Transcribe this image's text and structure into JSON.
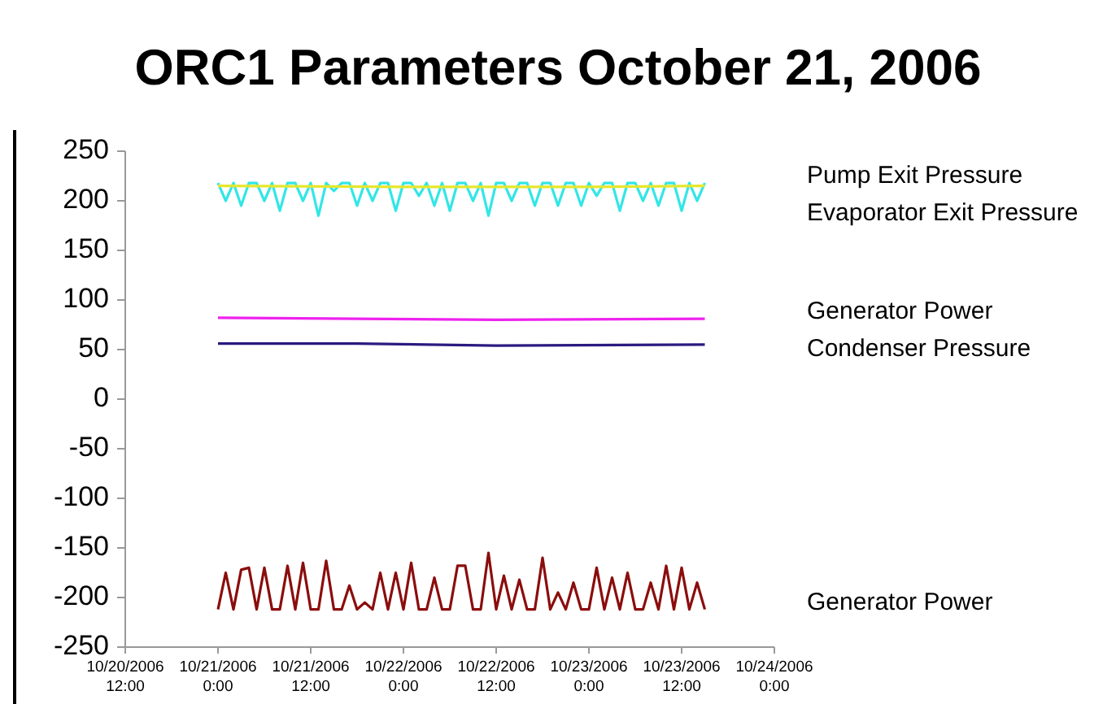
{
  "chart_data": {
    "type": "line",
    "title": "ORC1 Parameters October 21, 2006",
    "x": [
      "2006-10-21T00:00",
      "2006-10-21T01:00",
      "2006-10-21T02:00",
      "2006-10-21T03:00",
      "2006-10-21T04:00",
      "2006-10-21T05:00",
      "2006-10-21T06:00",
      "2006-10-21T07:00",
      "2006-10-21T08:00",
      "2006-10-21T09:00",
      "2006-10-21T10:00",
      "2006-10-21T11:00",
      "2006-10-21T12:00",
      "2006-10-21T13:00",
      "2006-10-21T14:00",
      "2006-10-21T15:00",
      "2006-10-21T16:00",
      "2006-10-21T17:00",
      "2006-10-21T18:00",
      "2006-10-21T19:00",
      "2006-10-21T20:00",
      "2006-10-21T21:00",
      "2006-10-21T22:00",
      "2006-10-21T23:00",
      "2006-10-22T00:00",
      "2006-10-22T01:00",
      "2006-10-22T02:00",
      "2006-10-22T03:00",
      "2006-10-22T04:00",
      "2006-10-22T05:00",
      "2006-10-22T06:00",
      "2006-10-22T07:00",
      "2006-10-22T08:00",
      "2006-10-22T09:00",
      "2006-10-22T10:00",
      "2006-10-22T11:00",
      "2006-10-22T12:00",
      "2006-10-22T13:00",
      "2006-10-22T14:00",
      "2006-10-22T15:00",
      "2006-10-22T16:00",
      "2006-10-22T17:00",
      "2006-10-22T18:00",
      "2006-10-22T19:00",
      "2006-10-22T20:00",
      "2006-10-22T21:00",
      "2006-10-22T22:00",
      "2006-10-22T23:00",
      "2006-10-23T00:00",
      "2006-10-23T01:00",
      "2006-10-23T02:00",
      "2006-10-23T03:00",
      "2006-10-23T04:00",
      "2006-10-23T05:00",
      "2006-10-23T06:00",
      "2006-10-23T07:00",
      "2006-10-23T08:00",
      "2006-10-23T09:00",
      "2006-10-23T10:00",
      "2006-10-23T11:00",
      "2006-10-23T12:00",
      "2006-10-23T13:00",
      "2006-10-23T14:00",
      "2006-10-23T15:00"
    ],
    "series": [
      {
        "name": "Pump Exit Pressure",
        "color": "#33e6e6",
        "values": [
          218,
          200,
          218,
          195,
          218,
          218,
          200,
          218,
          190,
          218,
          218,
          200,
          218,
          185,
          218,
          210,
          218,
          218,
          195,
          218,
          200,
          218,
          218,
          190,
          218,
          218,
          205,
          218,
          195,
          218,
          190,
          218,
          218,
          200,
          218,
          185,
          218,
          218,
          200,
          218,
          218,
          195,
          218,
          218,
          195,
          218,
          218,
          195,
          218,
          205,
          218,
          218,
          190,
          218,
          218,
          200,
          218,
          195,
          218,
          218,
          190,
          218,
          200,
          218
        ]
      },
      {
        "name": "Evaporator Exit Pressure",
        "color": "#e6e62e",
        "x": [
          "2006-10-21T00:00",
          "2006-10-22T00:00",
          "2006-10-23T00:00",
          "2006-10-23T15:00"
        ],
        "values": [
          215,
          214,
          214,
          215
        ]
      },
      {
        "name": "Generator Power",
        "color": "#ee22ee",
        "x": [
          "2006-10-21T00:00",
          "2006-10-21T18:00",
          "2006-10-22T12:00",
          "2006-10-23T15:00"
        ],
        "values": [
          82,
          81,
          80,
          81
        ]
      },
      {
        "name": "Condenser Pressure",
        "color": "#2a1a80",
        "x": [
          "2006-10-21T00:00",
          "2006-10-21T18:00",
          "2006-10-22T12:00",
          "2006-10-23T15:00"
        ],
        "values": [
          56,
          56,
          54,
          55
        ]
      },
      {
        "name": "Generator Power",
        "color": "#8b0d0d",
        "values": [
          -212,
          -175,
          -212,
          -172,
          -170,
          -212,
          -170,
          -212,
          -212,
          -168,
          -212,
          -165,
          -212,
          -212,
          -163,
          -212,
          -212,
          -188,
          -212,
          -205,
          -212,
          -175,
          -212,
          -175,
          -212,
          -165,
          -212,
          -212,
          -180,
          -212,
          -212,
          -168,
          -168,
          -212,
          -212,
          -155,
          -212,
          -178,
          -212,
          -182,
          -212,
          -212,
          -160,
          -212,
          -195,
          -212,
          -185,
          -212,
          -212,
          -170,
          -212,
          -180,
          -212,
          -175,
          -212,
          -212,
          -185,
          -212,
          -168,
          -212,
          -170,
          -212,
          -185,
          -212
        ]
      }
    ],
    "xlim": [
      "2006-10-20T12:00",
      "2006-10-24T00:00"
    ],
    "xticks": [
      {
        "value": "2006-10-20T12:00",
        "label": "10/20/2006 12:00"
      },
      {
        "value": "2006-10-21T00:00",
        "label": "10/21/2006 0:00"
      },
      {
        "value": "2006-10-21T12:00",
        "label": "10/21/2006 12:00"
      },
      {
        "value": "2006-10-22T00:00",
        "label": "10/22/2006 0:00"
      },
      {
        "value": "2006-10-22T12:00",
        "label": "10/22/2006 12:00"
      },
      {
        "value": "2006-10-23T00:00",
        "label": "10/23/2006 0:00"
      },
      {
        "value": "2006-10-23T12:00",
        "label": "10/23/2006 12:00"
      },
      {
        "value": "2006-10-24T00:00",
        "label": "10/24/2006 0:00"
      }
    ],
    "ylim": [
      -250,
      250
    ],
    "yticks": [
      -250,
      -200,
      -150,
      -100,
      -50,
      0,
      50,
      100,
      150,
      200,
      250
    ],
    "grid": false,
    "legend": false
  }
}
